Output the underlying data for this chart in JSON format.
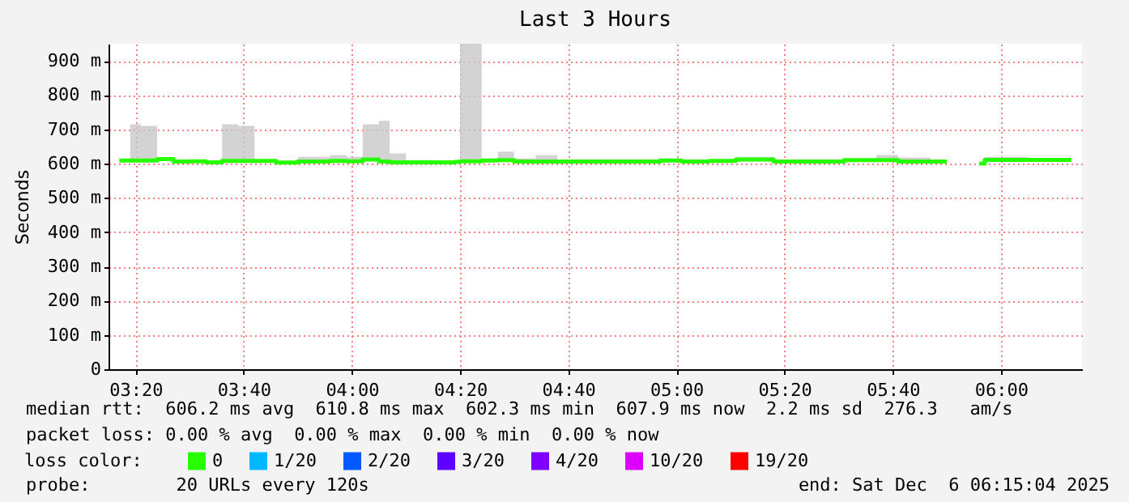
{
  "chart_data": {
    "type": "step",
    "title": "Last 3 Hours",
    "ylabel": "Seconds",
    "legend_title": "loss color:",
    "legend": "bottom",
    "grid": true,
    "xlim": [
      "2025-12-06T03:15",
      "2025-12-06T06:15"
    ],
    "xticks": [
      {
        "value": "2025-12-06T03:20",
        "label": "03:20"
      },
      {
        "value": "2025-12-06T03:40",
        "label": "03:40"
      },
      {
        "value": "2025-12-06T04:00",
        "label": "04:00"
      },
      {
        "value": "2025-12-06T04:20",
        "label": "04:20"
      },
      {
        "value": "2025-12-06T04:40",
        "label": "04:40"
      },
      {
        "value": "2025-12-06T05:00",
        "label": "05:00"
      },
      {
        "value": "2025-12-06T05:20",
        "label": "05:20"
      },
      {
        "value": "2025-12-06T05:40",
        "label": "05:40"
      },
      {
        "value": "2025-12-06T06:00",
        "label": "06:00"
      }
    ],
    "ylim": [
      0,
      950
    ],
    "yticks": [
      0,
      {
        "value": 100,
        "label": "100 m"
      },
      {
        "value": 200,
        "label": "200 m"
      },
      {
        "value": 300,
        "label": "300 m"
      },
      {
        "value": 400,
        "label": "400 m"
      },
      {
        "value": 500,
        "label": "500 m"
      },
      {
        "value": 600,
        "label": "600 m"
      },
      {
        "value": 700,
        "label": "700 m"
      },
      {
        "value": 800,
        "label": "800 m"
      },
      {
        "value": 900,
        "label": "900 m"
      }
    ],
    "x": [
      "2025-12-06T03:17",
      "2025-12-06T03:19",
      "2025-12-06T03:21",
      "2025-12-06T03:24",
      "2025-12-06T03:27",
      "2025-12-06T03:30",
      "2025-12-06T03:33",
      "2025-12-06T03:36",
      "2025-12-06T03:39",
      "2025-12-06T03:42",
      "2025-12-06T03:46",
      "2025-12-06T03:50",
      "2025-12-06T03:53",
      "2025-12-06T03:56",
      "2025-12-06T03:59",
      "2025-12-06T04:02",
      "2025-12-06T04:05",
      "2025-12-06T04:07",
      "2025-12-06T04:10",
      "2025-12-06T04:15",
      "2025-12-06T04:19",
      "2025-12-06T04:20",
      "2025-12-06T04:24",
      "2025-12-06T04:27",
      "2025-12-06T04:30",
      "2025-12-06T04:34",
      "2025-12-06T04:38",
      "2025-12-06T04:42",
      "2025-12-06T04:46",
      "2025-12-06T04:50",
      "2025-12-06T04:54",
      "2025-12-06T04:57",
      "2025-12-06T05:01",
      "2025-12-06T05:06",
      "2025-12-06T05:11",
      "2025-12-06T05:15",
      "2025-12-06T05:18",
      "2025-12-06T05:22",
      "2025-12-06T05:26",
      "2025-12-06T05:31",
      "2025-12-06T05:34",
      "2025-12-06T05:37",
      "2025-12-06T05:41",
      "2025-12-06T05:44",
      "2025-12-06T05:47",
      "2025-12-06T05:50",
      "2025-12-06T05:54",
      "2025-12-06T05:56",
      "2025-12-06T05:57",
      "2025-12-06T06:01",
      "2025-12-06T06:05",
      "2025-12-06T06:08",
      "2025-12-06T06:13"
    ],
    "series": [
      {
        "name": "0",
        "color": "#26ff00",
        "values": [
          609,
          609,
          609,
          613,
          606,
          607,
          604,
          608,
          608,
          608,
          603,
          606,
          606,
          608,
          607,
          612,
          606,
          604,
          604,
          604,
          605,
          607,
          609,
          610,
          606,
          606,
          606,
          606,
          606,
          606,
          606,
          609,
          606,
          608,
          612,
          612,
          606,
          606,
          606,
          610,
          610,
          610,
          606,
          606,
          606,
          606,
          null,
          600,
          611,
          611,
          611,
          611,
          611
        ],
        "lower": [
          609,
          609,
          609,
          613,
          606,
          607,
          604,
          608,
          608,
          608,
          603,
          606,
          606,
          608,
          607,
          612,
          606,
          604,
          604,
          604,
          605,
          607,
          609,
          610,
          606,
          606,
          606,
          606,
          606,
          606,
          606,
          609,
          606,
          608,
          612,
          612,
          606,
          606,
          606,
          610,
          610,
          610,
          606,
          606,
          606,
          606,
          null,
          600,
          611,
          611,
          611,
          611,
          611
        ],
        "upper": [
          612,
          715,
          710,
          615,
          610,
          609,
          607,
          715,
          710,
          610,
          606,
          620,
          620,
          625,
          620,
          715,
          725,
          630,
          610,
          606,
          610,
          950,
          615,
          635,
          615,
          625,
          608,
          608,
          608,
          608,
          612,
          615,
          612,
          612,
          620,
          620,
          608,
          608,
          608,
          615,
          615,
          625,
          618,
          618,
          608,
          608,
          null,
          602,
          620,
          620,
          617,
          617,
          617
        ]
      },
      {
        "name": "1/20",
        "color": "#00b8ff",
        "values": [
          null,
          null,
          null,
          null,
          null,
          null,
          null,
          null,
          null,
          null,
          null,
          null,
          null,
          null,
          null,
          null,
          null,
          null,
          null,
          null,
          null,
          null,
          null,
          null,
          null,
          null,
          null,
          null,
          null,
          null,
          null,
          null,
          null,
          null,
          null,
          null,
          null,
          null,
          null,
          null,
          null,
          null,
          null,
          null,
          null,
          null,
          null,
          null,
          null,
          null,
          null,
          null,
          null
        ]
      },
      {
        "name": "2/20",
        "color": "#0059ff",
        "values": [
          null,
          null,
          null,
          null,
          null,
          null,
          null,
          null,
          null,
          null,
          null,
          null,
          null,
          null,
          null,
          null,
          null,
          null,
          null,
          null,
          null,
          null,
          null,
          null,
          null,
          null,
          null,
          null,
          null,
          null,
          null,
          null,
          null,
          null,
          null,
          null,
          null,
          null,
          null,
          null,
          null,
          null,
          null,
          null,
          null,
          null,
          null,
          null,
          null,
          null,
          null,
          null,
          null
        ]
      },
      {
        "name": "3/20",
        "color": "#5e00ff",
        "values": [
          null,
          null,
          null,
          null,
          null,
          null,
          null,
          null,
          null,
          null,
          null,
          null,
          null,
          null,
          null,
          null,
          null,
          null,
          null,
          null,
          null,
          null,
          null,
          null,
          null,
          null,
          null,
          null,
          null,
          null,
          null,
          null,
          null,
          null,
          null,
          null,
          null,
          null,
          null,
          null,
          null,
          null,
          null,
          null,
          null,
          null,
          null,
          null,
          null,
          null,
          null,
          null,
          null
        ]
      },
      {
        "name": "4/20",
        "color": "#7e00ff",
        "values": [
          null,
          null,
          null,
          null,
          null,
          null,
          null,
          null,
          null,
          null,
          null,
          null,
          null,
          null,
          null,
          null,
          null,
          null,
          null,
          null,
          null,
          null,
          null,
          null,
          null,
          null,
          null,
          null,
          null,
          null,
          null,
          null,
          null,
          null,
          null,
          null,
          null,
          null,
          null,
          null,
          null,
          null,
          null,
          null,
          null,
          null,
          null,
          null,
          null,
          null,
          null,
          null,
          null
        ]
      },
      {
        "name": "10/20",
        "color": "#dd00ff",
        "values": [
          null,
          null,
          null,
          null,
          null,
          null,
          null,
          null,
          null,
          null,
          null,
          null,
          null,
          null,
          null,
          null,
          null,
          null,
          null,
          null,
          null,
          null,
          null,
          null,
          null,
          null,
          null,
          null,
          null,
          null,
          null,
          null,
          null,
          null,
          null,
          null,
          null,
          null,
          null,
          null,
          null,
          null,
          null,
          null,
          null,
          null,
          null,
          null,
          null,
          null,
          null,
          null,
          null
        ]
      },
      {
        "name": "19/20",
        "color": "#ff0000",
        "values": [
          null,
          null,
          null,
          null,
          null,
          null,
          null,
          null,
          null,
          null,
          null,
          null,
          null,
          null,
          null,
          null,
          null,
          null,
          null,
          null,
          null,
          null,
          null,
          null,
          null,
          null,
          null,
          null,
          null,
          null,
          null,
          null,
          null,
          null,
          null,
          null,
          null,
          null,
          null,
          null,
          null,
          null,
          null,
          null,
          null,
          null,
          null,
          null,
          null,
          null,
          null,
          null,
          null
        ]
      }
    ],
    "annotations": [
      "median rtt:  606.2 ms avg  610.8 ms max  602.3 ms min  607.9 ms now  2.2 ms sd  276.3   am/s",
      "packet loss: 0.00 % avg  0.00 % max  0.00 % min  0.00 % now",
      "probe:        20 URLs every 120s",
      "end: Sat Dec  6 06:15:04 2025"
    ]
  }
}
